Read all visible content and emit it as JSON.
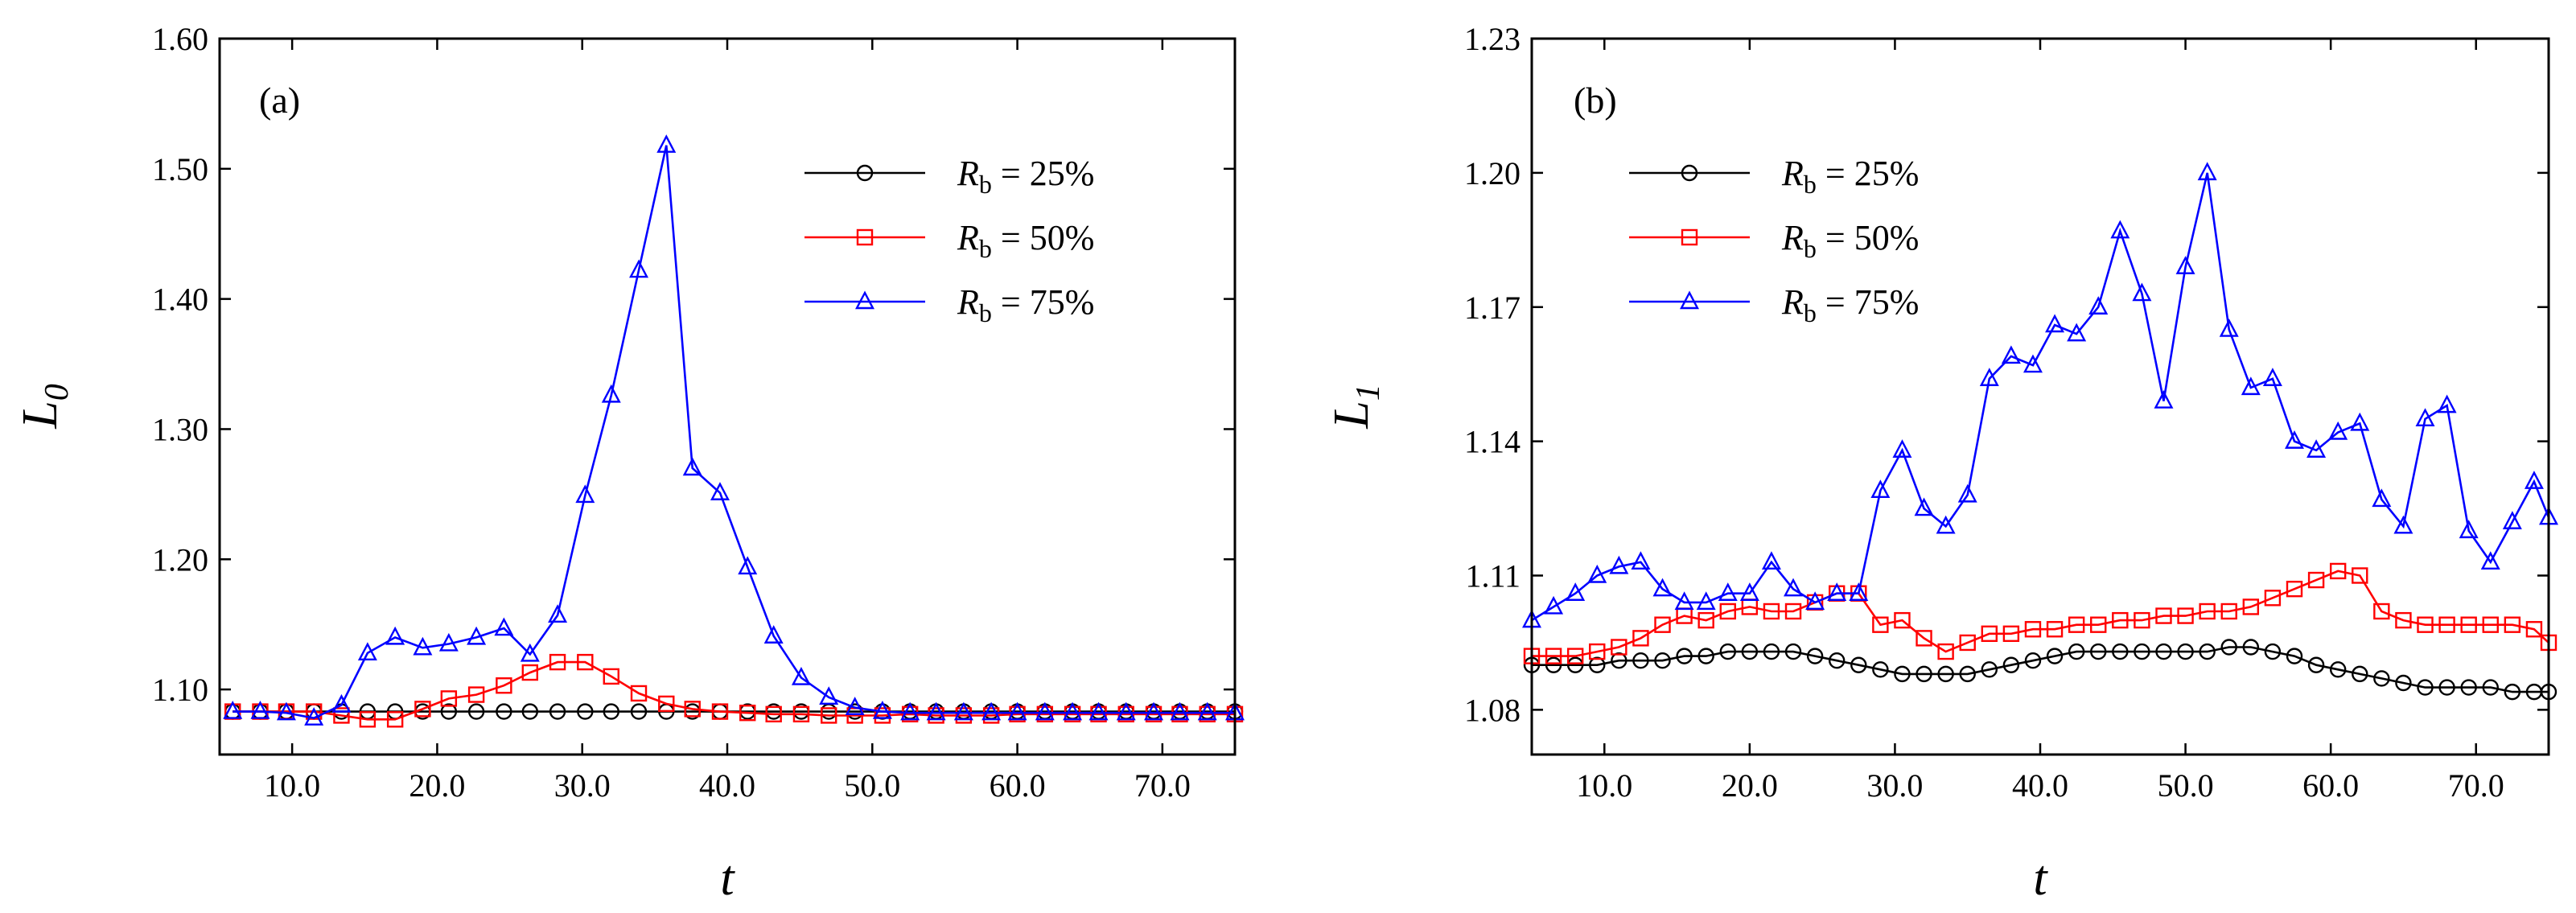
{
  "chart_data": [
    {
      "type": "line",
      "panel_label": "(a)",
      "xlabel": "t",
      "ylabel_main": "L",
      "ylabel_sub": "0",
      "xlim": [
        5,
        75
      ],
      "ylim": [
        1.05,
        1.6
      ],
      "xticks": [
        10,
        20,
        30,
        40,
        50,
        60,
        70
      ],
      "xtick_labels": [
        "10.0",
        "20.0",
        "30.0",
        "40.0",
        "50.0",
        "60.0",
        "70.0"
      ],
      "yticks": [
        1.1,
        1.2,
        1.3,
        1.4,
        1.5,
        1.6
      ],
      "ytick_labels": [
        "1.10",
        "1.20",
        "1.30",
        "1.40",
        "1.50",
        "1.60"
      ],
      "legend_position": "top-right",
      "series": [
        {
          "name_main": "R",
          "name_sub": "b",
          "name_rest": " = 25%",
          "color": "#000000",
          "marker": "circle",
          "x": [
            5.9,
            7.8,
            9.6,
            11.5,
            13.4,
            15.2,
            17.1,
            19.0,
            20.8,
            22.7,
            24.6,
            26.4,
            28.3,
            30.2,
            32.0,
            33.9,
            35.8,
            37.6,
            39.5,
            41.4,
            43.2,
            45.1,
            47.0,
            48.8,
            50.7,
            52.6,
            54.4,
            56.3,
            58.2,
            60.0,
            61.9,
            63.8,
            65.6,
            67.5,
            69.4,
            71.2,
            73.1,
            75.0
          ],
          "y": [
            1.083,
            1.083,
            1.083,
            1.083,
            1.083,
            1.083,
            1.083,
            1.083,
            1.083,
            1.083,
            1.083,
            1.083,
            1.083,
            1.083,
            1.083,
            1.083,
            1.083,
            1.083,
            1.083,
            1.083,
            1.083,
            1.083,
            1.083,
            1.083,
            1.083,
            1.083,
            1.083,
            1.083,
            1.083,
            1.083,
            1.083,
            1.083,
            1.083,
            1.083,
            1.083,
            1.083,
            1.083,
            1.083
          ]
        },
        {
          "name_main": "R",
          "name_sub": "b",
          "name_rest": " = 50%",
          "color": "#ff0000",
          "marker": "square",
          "x": [
            5.9,
            7.8,
            9.6,
            11.5,
            13.4,
            15.2,
            17.1,
            19.0,
            20.8,
            22.7,
            24.6,
            26.4,
            28.3,
            30.2,
            32.0,
            33.9,
            35.8,
            37.6,
            39.5,
            41.4,
            43.2,
            45.1,
            47.0,
            48.8,
            50.7,
            52.6,
            54.4,
            56.3,
            58.2,
            60.0,
            61.9,
            63.8,
            65.6,
            67.5,
            69.4,
            71.2,
            73.1,
            75.0
          ],
          "y": [
            1.083,
            1.083,
            1.083,
            1.083,
            1.08,
            1.077,
            1.077,
            1.085,
            1.093,
            1.096,
            1.103,
            1.113,
            1.121,
            1.121,
            1.11,
            1.097,
            1.089,
            1.085,
            1.083,
            1.082,
            1.081,
            1.081,
            1.08,
            1.08,
            1.08,
            1.081,
            1.08,
            1.08,
            1.08,
            1.081,
            1.081,
            1.081,
            1.081,
            1.081,
            1.081,
            1.081,
            1.081,
            1.081
          ]
        },
        {
          "name_main": "R",
          "name_sub": "b",
          "name_rest": " = 75%",
          "color": "#0000ff",
          "marker": "triangle",
          "x": [
            5.9,
            7.8,
            9.6,
            11.5,
            13.4,
            15.2,
            17.1,
            19.0,
            20.8,
            22.7,
            24.6,
            26.4,
            28.3,
            30.2,
            32.0,
            33.9,
            35.8,
            37.6,
            39.5,
            41.4,
            43.2,
            45.1,
            47.0,
            48.8,
            50.7,
            52.6,
            54.4,
            56.3,
            58.2,
            60.0,
            61.9,
            63.8,
            65.6,
            67.5,
            69.4,
            71.2,
            73.1,
            75.0
          ],
          "y": [
            1.083,
            1.083,
            1.082,
            1.078,
            1.088,
            1.128,
            1.14,
            1.132,
            1.135,
            1.14,
            1.147,
            1.127,
            1.157,
            1.249,
            1.326,
            1.422,
            1.518,
            1.27,
            1.251,
            1.194,
            1.141,
            1.109,
            1.094,
            1.086,
            1.083,
            1.082,
            1.082,
            1.082,
            1.082,
            1.082,
            1.082,
            1.082,
            1.082,
            1.082,
            1.082,
            1.082,
            1.082,
            1.082
          ]
        }
      ]
    },
    {
      "type": "line",
      "panel_label": "(b)",
      "xlabel": "t",
      "ylabel_main": "L",
      "ylabel_sub": "1",
      "xlim": [
        5,
        75
      ],
      "ylim": [
        1.07,
        1.23
      ],
      "xticks": [
        10,
        20,
        30,
        40,
        50,
        60,
        70
      ],
      "xtick_labels": [
        "10.0",
        "20.0",
        "30.0",
        "40.0",
        "50.0",
        "60.0",
        "70.0"
      ],
      "yticks": [
        1.08,
        1.11,
        1.14,
        1.17,
        1.2,
        1.23
      ],
      "ytick_labels": [
        "1.08",
        "1.11",
        "1.14",
        "1.17",
        "1.20",
        "1.23"
      ],
      "legend_position": "top-left",
      "series": [
        {
          "name_main": "R",
          "name_sub": "b",
          "name_rest": " = 25%",
          "color": "#000000",
          "marker": "circle",
          "x": [
            5.0,
            6.5,
            8.0,
            9.5,
            11.0,
            12.5,
            14.0,
            15.5,
            17.0,
            18.5,
            20.0,
            21.5,
            23.0,
            24.5,
            26.0,
            27.5,
            29.0,
            30.5,
            32.0,
            33.5,
            35.0,
            36.5,
            38.0,
            39.5,
            41.0,
            42.5,
            44.0,
            45.5,
            47.0,
            48.5,
            50.0,
            51.5,
            53.0,
            54.5,
            56.0,
            57.5,
            59.0,
            60.5,
            62.0,
            63.5,
            65.0,
            66.5,
            68.0,
            69.5,
            71.0,
            72.5,
            74.0,
            75.0
          ],
          "y": [
            1.09,
            1.09,
            1.09,
            1.09,
            1.091,
            1.091,
            1.091,
            1.092,
            1.092,
            1.093,
            1.093,
            1.093,
            1.093,
            1.092,
            1.091,
            1.09,
            1.089,
            1.088,
            1.088,
            1.088,
            1.088,
            1.089,
            1.09,
            1.091,
            1.092,
            1.093,
            1.093,
            1.093,
            1.093,
            1.093,
            1.093,
            1.093,
            1.094,
            1.094,
            1.093,
            1.092,
            1.09,
            1.089,
            1.088,
            1.087,
            1.086,
            1.085,
            1.085,
            1.085,
            1.085,
            1.084,
            1.084,
            1.084
          ]
        },
        {
          "name_main": "R",
          "name_sub": "b",
          "name_rest": " = 50%",
          "color": "#ff0000",
          "marker": "square",
          "x": [
            5.0,
            6.5,
            8.0,
            9.5,
            11.0,
            12.5,
            14.0,
            15.5,
            17.0,
            18.5,
            20.0,
            21.5,
            23.0,
            24.5,
            26.0,
            27.5,
            29.0,
            30.5,
            32.0,
            33.5,
            35.0,
            36.5,
            38.0,
            39.5,
            41.0,
            42.5,
            44.0,
            45.5,
            47.0,
            48.5,
            50.0,
            51.5,
            53.0,
            54.5,
            56.0,
            57.5,
            59.0,
            60.5,
            62.0,
            63.5,
            65.0,
            66.5,
            68.0,
            69.5,
            71.0,
            72.5,
            74.0,
            75.0
          ],
          "y": [
            1.092,
            1.092,
            1.092,
            1.093,
            1.094,
            1.096,
            1.099,
            1.101,
            1.1,
            1.102,
            1.103,
            1.102,
            1.102,
            1.104,
            1.106,
            1.106,
            1.099,
            1.1,
            1.096,
            1.093,
            1.095,
            1.097,
            1.097,
            1.098,
            1.098,
            1.099,
            1.099,
            1.1,
            1.1,
            1.101,
            1.101,
            1.102,
            1.102,
            1.103,
            1.105,
            1.107,
            1.109,
            1.111,
            1.11,
            1.102,
            1.1,
            1.099,
            1.099,
            1.099,
            1.099,
            1.099,
            1.098,
            1.095
          ]
        },
        {
          "name_main": "R",
          "name_sub": "b",
          "name_rest": " = 75%",
          "color": "#0000ff",
          "marker": "triangle",
          "x": [
            5.0,
            6.5,
            8.0,
            9.5,
            11.0,
            12.5,
            14.0,
            15.5,
            17.0,
            18.5,
            20.0,
            21.5,
            23.0,
            24.5,
            26.0,
            27.5,
            29.0,
            30.5,
            32.0,
            33.5,
            35.0,
            36.5,
            38.0,
            39.5,
            41.0,
            42.5,
            44.0,
            45.5,
            47.0,
            48.5,
            50.0,
            51.5,
            53.0,
            54.5,
            56.0,
            57.5,
            59.0,
            60.5,
            62.0,
            63.5,
            65.0,
            66.5,
            68.0,
            69.5,
            71.0,
            72.5,
            74.0,
            75.0
          ],
          "y": [
            1.1,
            1.103,
            1.106,
            1.11,
            1.112,
            1.113,
            1.107,
            1.104,
            1.104,
            1.106,
            1.106,
            1.113,
            1.107,
            1.104,
            1.106,
            1.106,
            1.129,
            1.138,
            1.125,
            1.121,
            1.128,
            1.154,
            1.159,
            1.157,
            1.166,
            1.164,
            1.17,
            1.187,
            1.173,
            1.149,
            1.179,
            1.2,
            1.165,
            1.152,
            1.154,
            1.14,
            1.138,
            1.142,
            1.144,
            1.127,
            1.121,
            1.145,
            1.148,
            1.12,
            1.113,
            1.122,
            1.131,
            1.123
          ]
        }
      ]
    }
  ]
}
